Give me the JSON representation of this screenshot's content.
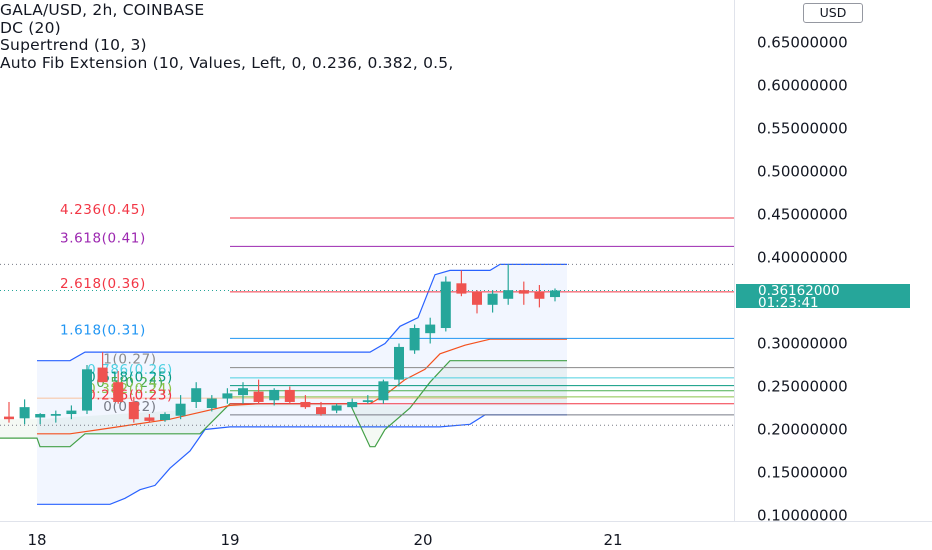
{
  "legend": {
    "symbol_line": "GALA/USD, 2h, COINBASE",
    "indicator_1": "DC (20)",
    "indicator_2": "Supertrend (10, 3)",
    "indicator_3": "Auto Fib Extension (10, Values, Left, 0, 0.236, 0.382, 0.5,"
  },
  "currency_button": "USD",
  "last_price": {
    "value": "0.36162000",
    "countdown": "01:23:41"
  },
  "colors": {
    "up": "#26a69a",
    "down": "#ef5350",
    "donchian": "#2962ff",
    "supertrend_up": "#43a047",
    "supertrend_line": "#f4511e",
    "fib_450": "#f23645",
    "fib_410": "#9c27b0",
    "fib_360": "#f23645",
    "fib_310": "#2196f3"
  },
  "chart_data": {
    "type": "candlestick",
    "symbol": "GALA/USD",
    "interval": "2h",
    "exchange": "COINBASE",
    "x_axis_labels": [
      "18",
      "19",
      "20",
      "21"
    ],
    "y_axis_labels": [
      "0.65000000",
      "0.60000000",
      "0.55000000",
      "0.50000000",
      "0.45000000",
      "0.40000000",
      "0.30000000",
      "0.25000000",
      "0.20000000",
      "0.15000000",
      "0.10000000"
    ],
    "ylim": [
      0.095,
      0.68
    ],
    "candles": [
      {
        "x": 0,
        "o": 0.215,
        "h": 0.232,
        "l": 0.208,
        "c": 0.212
      },
      {
        "x": 1,
        "o": 0.213,
        "h": 0.235,
        "l": 0.206,
        "c": 0.226
      },
      {
        "x": 2,
        "o": 0.214,
        "h": 0.219,
        "l": 0.206,
        "c": 0.218
      },
      {
        "x": 3,
        "o": 0.216,
        "h": 0.222,
        "l": 0.208,
        "c": 0.218
      },
      {
        "x": 4,
        "o": 0.218,
        "h": 0.228,
        "l": 0.212,
        "c": 0.222
      },
      {
        "x": 5,
        "o": 0.222,
        "h": 0.275,
        "l": 0.218,
        "c": 0.27
      },
      {
        "x": 6,
        "o": 0.272,
        "h": 0.29,
        "l": 0.255,
        "c": 0.255
      },
      {
        "x": 7,
        "o": 0.255,
        "h": 0.268,
        "l": 0.23,
        "c": 0.232
      },
      {
        "x": 8,
        "o": 0.232,
        "h": 0.238,
        "l": 0.208,
        "c": 0.212
      },
      {
        "x": 9,
        "o": 0.214,
        "h": 0.218,
        "l": 0.208,
        "c": 0.21
      },
      {
        "x": 10,
        "o": 0.211,
        "h": 0.22,
        "l": 0.209,
        "c": 0.218
      },
      {
        "x": 11,
        "o": 0.216,
        "h": 0.24,
        "l": 0.212,
        "c": 0.23
      },
      {
        "x": 12,
        "o": 0.232,
        "h": 0.255,
        "l": 0.225,
        "c": 0.248
      },
      {
        "x": 13,
        "o": 0.225,
        "h": 0.24,
        "l": 0.221,
        "c": 0.236
      },
      {
        "x": 14,
        "o": 0.236,
        "h": 0.248,
        "l": 0.23,
        "c": 0.242
      },
      {
        "x": 15,
        "o": 0.24,
        "h": 0.255,
        "l": 0.23,
        "c": 0.248
      },
      {
        "x": 16,
        "o": 0.244,
        "h": 0.258,
        "l": 0.23,
        "c": 0.232
      },
      {
        "x": 17,
        "o": 0.234,
        "h": 0.248,
        "l": 0.228,
        "c": 0.246
      },
      {
        "x": 18,
        "o": 0.246,
        "h": 0.25,
        "l": 0.23,
        "c": 0.232
      },
      {
        "x": 19,
        "o": 0.232,
        "h": 0.24,
        "l": 0.224,
        "c": 0.226
      },
      {
        "x": 20,
        "o": 0.226,
        "h": 0.232,
        "l": 0.216,
        "c": 0.218
      },
      {
        "x": 21,
        "o": 0.222,
        "h": 0.23,
        "l": 0.219,
        "c": 0.228
      },
      {
        "x": 22,
        "o": 0.226,
        "h": 0.236,
        "l": 0.224,
        "c": 0.232
      },
      {
        "x": 23,
        "o": 0.232,
        "h": 0.24,
        "l": 0.23,
        "c": 0.234
      },
      {
        "x": 24,
        "o": 0.234,
        "h": 0.258,
        "l": 0.23,
        "c": 0.256
      },
      {
        "x": 25,
        "o": 0.258,
        "h": 0.3,
        "l": 0.25,
        "c": 0.296
      },
      {
        "x": 26,
        "o": 0.292,
        "h": 0.322,
        "l": 0.288,
        "c": 0.318
      },
      {
        "x": 27,
        "o": 0.312,
        "h": 0.33,
        "l": 0.3,
        "c": 0.322
      },
      {
        "x": 28,
        "o": 0.318,
        "h": 0.378,
        "l": 0.314,
        "c": 0.372
      },
      {
        "x": 29,
        "o": 0.37,
        "h": 0.385,
        "l": 0.355,
        "c": 0.358
      },
      {
        "x": 30,
        "o": 0.36,
        "h": 0.362,
        "l": 0.335,
        "c": 0.345
      },
      {
        "x": 31,
        "o": 0.345,
        "h": 0.362,
        "l": 0.336,
        "c": 0.358
      },
      {
        "x": 32,
        "o": 0.352,
        "h": 0.392,
        "l": 0.345,
        "c": 0.362
      },
      {
        "x": 33,
        "o": 0.362,
        "h": 0.372,
        "l": 0.345,
        "c": 0.358
      },
      {
        "x": 34,
        "o": 0.36,
        "h": 0.368,
        "l": 0.342,
        "c": 0.352
      },
      {
        "x": 35,
        "o": 0.354,
        "h": 0.364,
        "l": 0.349,
        "c": 0.3616
      }
    ],
    "fib_levels": [
      {
        "label": "4.236(0.45)",
        "value": 0.446
      },
      {
        "label": "3.618(0.41)",
        "value": 0.413
      },
      {
        "label": "2.618(0.36)",
        "value": 0.36
      },
      {
        "label": "1.618(0.31)",
        "value": 0.306
      },
      {
        "label": "1(0.27)",
        "value": 0.272
      },
      {
        "label": "0.786(0.26)",
        "value": 0.26
      },
      {
        "label": "0.618(0.25)",
        "value": 0.251
      },
      {
        "label": "0.5(0.24)",
        "value": 0.245
      },
      {
        "label": "0.382(0.24)",
        "value": 0.238
      },
      {
        "label": "0.236(0.23)",
        "value": 0.23
      },
      {
        "label": "0(0.22)",
        "value": 0.217
      }
    ]
  }
}
